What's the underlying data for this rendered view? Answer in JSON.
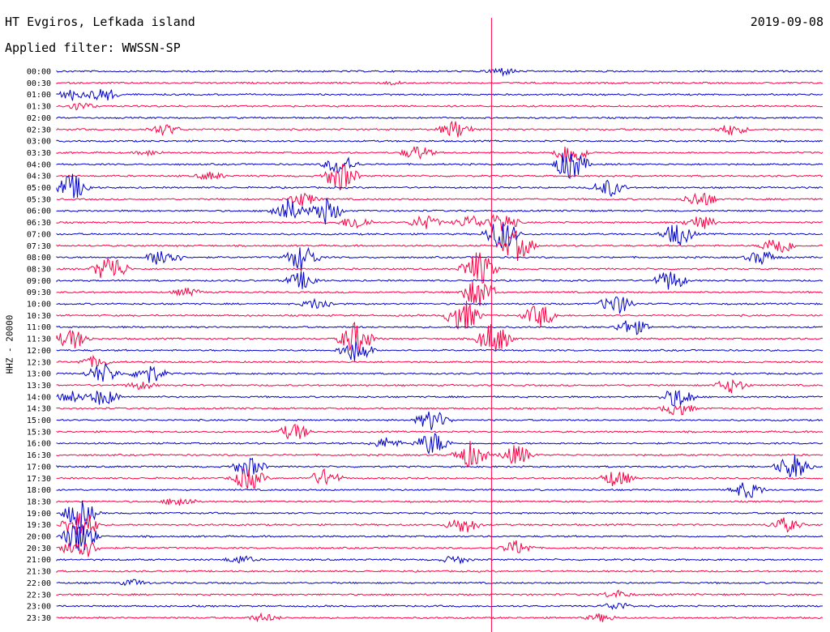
{
  "header": {
    "station": "HT Evgiros, Lefkada island",
    "date": "2019-09-08",
    "filter": "Applied filter: WWSSN-SP"
  },
  "chart_data": {
    "type": "line",
    "ylabel": "HHZ - 20000",
    "title": "",
    "xlabel": "",
    "time_labels": [
      "00:00",
      "00:30",
      "01:00",
      "01:30",
      "02:00",
      "02:30",
      "03:00",
      "03:30",
      "04:00",
      "04:30",
      "05:00",
      "05:30",
      "06:00",
      "06:30",
      "07:00",
      "07:30",
      "08:00",
      "08:30",
      "09:00",
      "09:30",
      "10:00",
      "10:30",
      "11:00",
      "11:30",
      "12:00",
      "12:30",
      "13:00",
      "13:30",
      "14:00",
      "14:30",
      "15:00",
      "15:30",
      "16:00",
      "16:30",
      "17:00",
      "17:30",
      "18:00",
      "18:30",
      "19:00",
      "19:30",
      "20:00",
      "20:30",
      "21:00",
      "21:30",
      "22:00",
      "22:30",
      "23:00",
      "23:30"
    ],
    "trace_colors": [
      "#0000cc",
      "#ff0044"
    ],
    "marker_color": "#ff0044",
    "current_time_fraction": 0.567,
    "grid": false,
    "events": [
      {
        "row": 0,
        "pos": 0.58,
        "amp": 6
      },
      {
        "row": 1,
        "pos": 0.44,
        "amp": 3
      },
      {
        "row": 2,
        "pos": 0.02,
        "amp": 8
      },
      {
        "row": 2,
        "pos": 0.06,
        "amp": 10
      },
      {
        "row": 3,
        "pos": 0.03,
        "amp": 6
      },
      {
        "row": 5,
        "pos": 0.14,
        "amp": 8
      },
      {
        "row": 5,
        "pos": 0.52,
        "amp": 12
      },
      {
        "row": 5,
        "pos": 0.88,
        "amp": 8
      },
      {
        "row": 7,
        "pos": 0.12,
        "amp": 4
      },
      {
        "row": 7,
        "pos": 0.47,
        "amp": 10
      },
      {
        "row": 7,
        "pos": 0.67,
        "amp": 18
      },
      {
        "row": 8,
        "pos": 0.67,
        "amp": 22
      },
      {
        "row": 8,
        "pos": 0.37,
        "amp": 14
      },
      {
        "row": 9,
        "pos": 0.37,
        "amp": 20
      },
      {
        "row": 9,
        "pos": 0.2,
        "amp": 6
      },
      {
        "row": 10,
        "pos": 0.02,
        "amp": 18
      },
      {
        "row": 10,
        "pos": 0.72,
        "amp": 12
      },
      {
        "row": 11,
        "pos": 0.32,
        "amp": 10
      },
      {
        "row": 11,
        "pos": 0.84,
        "amp": 12
      },
      {
        "row": 12,
        "pos": 0.3,
        "amp": 16
      },
      {
        "row": 12,
        "pos": 0.35,
        "amp": 18
      },
      {
        "row": 13,
        "pos": 0.39,
        "amp": 10
      },
      {
        "row": 13,
        "pos": 0.48,
        "amp": 10
      },
      {
        "row": 13,
        "pos": 0.54,
        "amp": 10
      },
      {
        "row": 13,
        "pos": 0.58,
        "amp": 14
      },
      {
        "row": 13,
        "pos": 0.84,
        "amp": 10
      },
      {
        "row": 14,
        "pos": 0.58,
        "amp": 22
      },
      {
        "row": 14,
        "pos": 0.81,
        "amp": 16
      },
      {
        "row": 15,
        "pos": 0.6,
        "amp": 20
      },
      {
        "row": 15,
        "pos": 0.94,
        "amp": 14
      },
      {
        "row": 16,
        "pos": 0.14,
        "amp": 14
      },
      {
        "row": 16,
        "pos": 0.32,
        "amp": 18
      },
      {
        "row": 16,
        "pos": 0.92,
        "amp": 10
      },
      {
        "row": 17,
        "pos": 0.07,
        "amp": 20
      },
      {
        "row": 17,
        "pos": 0.55,
        "amp": 24
      },
      {
        "row": 18,
        "pos": 0.32,
        "amp": 12
      },
      {
        "row": 18,
        "pos": 0.8,
        "amp": 14
      },
      {
        "row": 19,
        "pos": 0.17,
        "amp": 6
      },
      {
        "row": 19,
        "pos": 0.55,
        "amp": 20
      },
      {
        "row": 20,
        "pos": 0.34,
        "amp": 8
      },
      {
        "row": 20,
        "pos": 0.73,
        "amp": 14
      },
      {
        "row": 21,
        "pos": 0.53,
        "amp": 22
      },
      {
        "row": 21,
        "pos": 0.63,
        "amp": 16
      },
      {
        "row": 22,
        "pos": 0.75,
        "amp": 12
      },
      {
        "row": 23,
        "pos": 0.02,
        "amp": 14
      },
      {
        "row": 23,
        "pos": 0.39,
        "amp": 22
      },
      {
        "row": 23,
        "pos": 0.57,
        "amp": 22
      },
      {
        "row": 24,
        "pos": 0.39,
        "amp": 16
      },
      {
        "row": 25,
        "pos": 0.05,
        "amp": 8
      },
      {
        "row": 26,
        "pos": 0.06,
        "amp": 14
      },
      {
        "row": 26,
        "pos": 0.12,
        "amp": 14
      },
      {
        "row": 27,
        "pos": 0.11,
        "amp": 6
      },
      {
        "row": 27,
        "pos": 0.88,
        "amp": 10
      },
      {
        "row": 28,
        "pos": 0.02,
        "amp": 8
      },
      {
        "row": 28,
        "pos": 0.06,
        "amp": 12
      },
      {
        "row": 28,
        "pos": 0.81,
        "amp": 14
      },
      {
        "row": 29,
        "pos": 0.81,
        "amp": 10
      },
      {
        "row": 30,
        "pos": 0.49,
        "amp": 14
      },
      {
        "row": 31,
        "pos": 0.31,
        "amp": 12
      },
      {
        "row": 32,
        "pos": 0.43,
        "amp": 8
      },
      {
        "row": 32,
        "pos": 0.49,
        "amp": 16
      },
      {
        "row": 33,
        "pos": 0.54,
        "amp": 18
      },
      {
        "row": 33,
        "pos": 0.6,
        "amp": 14
      },
      {
        "row": 34,
        "pos": 0.25,
        "amp": 14
      },
      {
        "row": 34,
        "pos": 0.96,
        "amp": 18
      },
      {
        "row": 35,
        "pos": 0.25,
        "amp": 16
      },
      {
        "row": 35,
        "pos": 0.35,
        "amp": 12
      },
      {
        "row": 35,
        "pos": 0.73,
        "amp": 12
      },
      {
        "row": 36,
        "pos": 0.9,
        "amp": 12
      },
      {
        "row": 37,
        "pos": 0.16,
        "amp": 8
      },
      {
        "row": 38,
        "pos": 0.03,
        "amp": 20
      },
      {
        "row": 39,
        "pos": 0.03,
        "amp": 24
      },
      {
        "row": 39,
        "pos": 0.53,
        "amp": 12
      },
      {
        "row": 39,
        "pos": 0.95,
        "amp": 10
      },
      {
        "row": 40,
        "pos": 0.03,
        "amp": 24
      },
      {
        "row": 41,
        "pos": 0.03,
        "amp": 18
      },
      {
        "row": 41,
        "pos": 0.6,
        "amp": 10
      },
      {
        "row": 42,
        "pos": 0.24,
        "amp": 6
      },
      {
        "row": 42,
        "pos": 0.52,
        "amp": 6
      },
      {
        "row": 44,
        "pos": 0.1,
        "amp": 5
      },
      {
        "row": 45,
        "pos": 0.73,
        "amp": 6
      },
      {
        "row": 46,
        "pos": 0.73,
        "amp": 6
      },
      {
        "row": 47,
        "pos": 0.27,
        "amp": 6
      },
      {
        "row": 47,
        "pos": 0.71,
        "amp": 6
      }
    ]
  }
}
